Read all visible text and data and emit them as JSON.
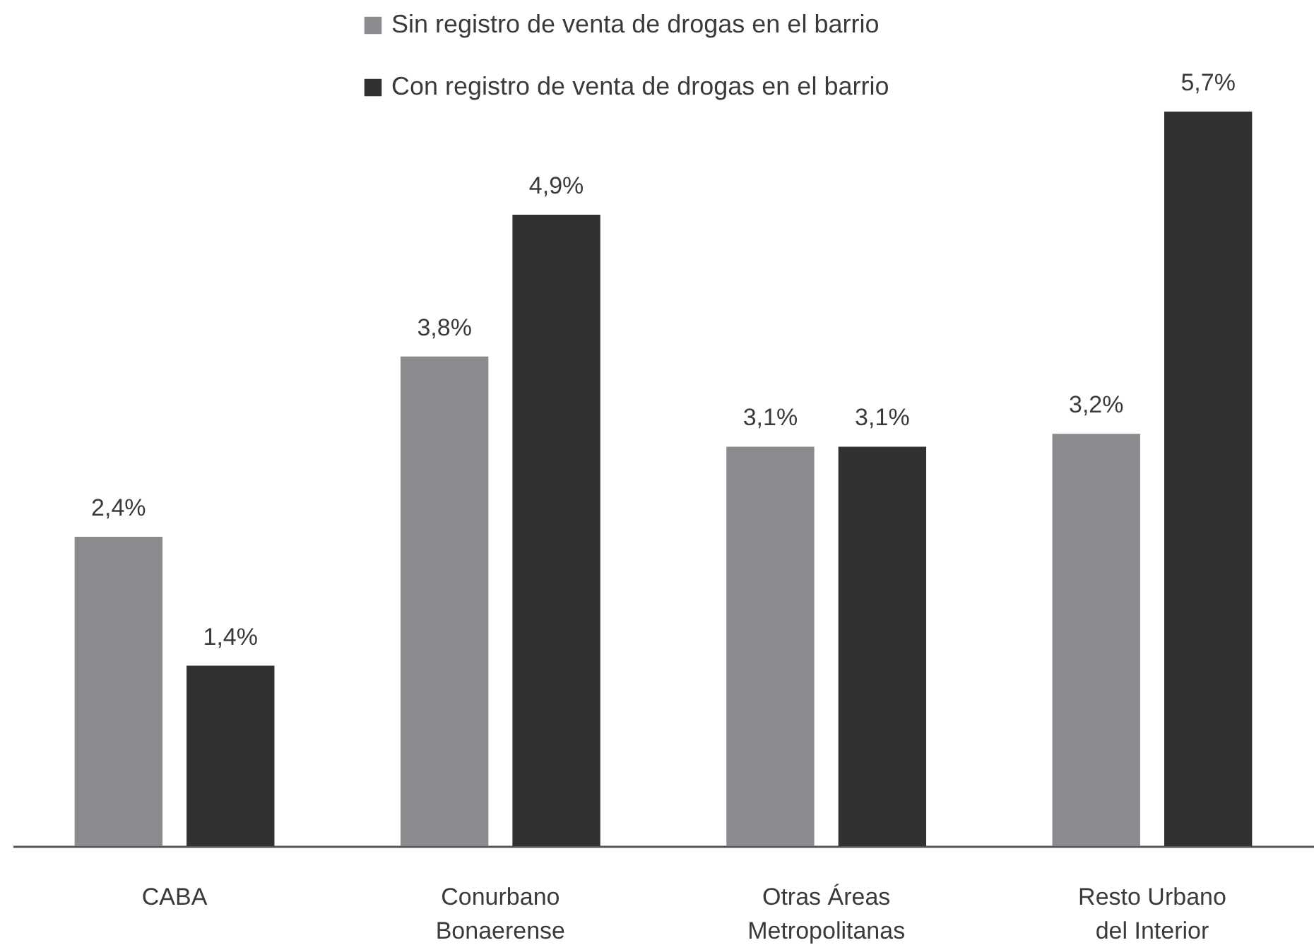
{
  "chart_data": {
    "type": "bar",
    "categories": [
      "CABA",
      "Conurbano\nBonaerense",
      "Otras Áreas\nMetropolitanas",
      "Resto Urbano\ndel Interior"
    ],
    "series": [
      {
        "name": "Sin registro de venta de drogas en el barrio",
        "color": "#8b8b8f",
        "values": [
          2.4,
          3.8,
          3.1,
          3.2
        ],
        "value_labels": [
          "2,4%",
          "3,8%",
          "3,1%",
          "3,2%"
        ]
      },
      {
        "name": "Con registro de venta de drogas en el barrio",
        "color": "#323031",
        "values": [
          1.4,
          4.9,
          3.1,
          5.7
        ],
        "value_labels": [
          "1,4%",
          "4,9%",
          "3,1%",
          "5,7%"
        ]
      }
    ],
    "legend": "top"
  }
}
